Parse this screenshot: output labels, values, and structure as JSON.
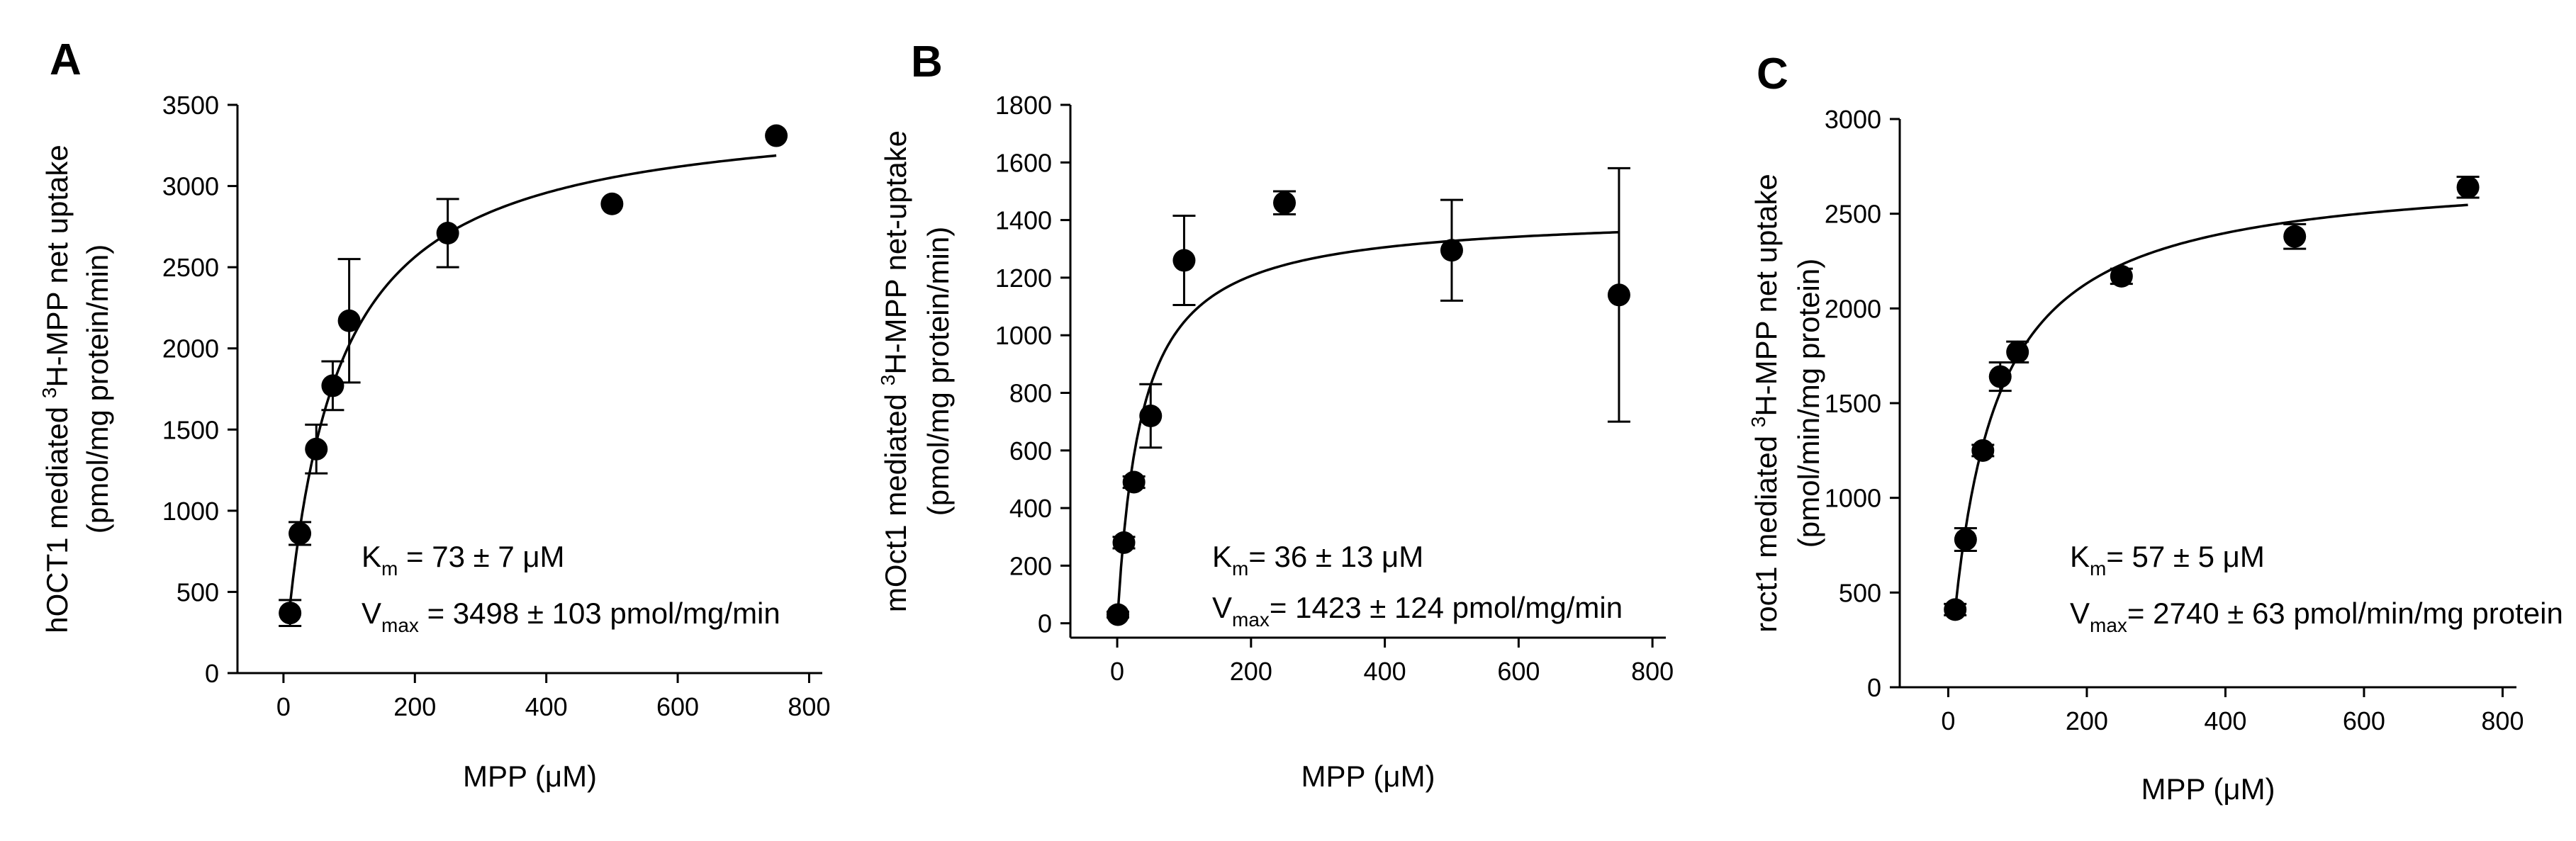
{
  "chart_data": [
    {
      "type": "scatter",
      "panel_label": "A",
      "xlabel": "MPP (μM)",
      "ylabel_line1_pre": "hOCT1 mediated ",
      "ylabel_line1_sup": "3",
      "ylabel_line1_post": "H-MPP net uptake",
      "ylabel_line2": "(pmol/mg protein/min)",
      "xlim": [
        -70,
        820
      ],
      "ylim": [
        0,
        3500
      ],
      "xticks": [
        0,
        200,
        400,
        600,
        800
      ],
      "yticks": [
        0,
        500,
        1000,
        1500,
        2000,
        2500,
        3000,
        3500
      ],
      "x": [
        10,
        25,
        50,
        75,
        100,
        250,
        500,
        750
      ],
      "y": [
        370,
        860,
        1380,
        1770,
        2170,
        2710,
        2890,
        3310
      ],
      "err": [
        80,
        70,
        150,
        150,
        380,
        210,
        0,
        0
      ],
      "fit": {
        "model": "michaelis-menten",
        "km": 73,
        "vmax": 3498,
        "x_range": [
          10,
          750
        ]
      },
      "km_sym": "K",
      "km_sub": "m",
      "km_text": " = 73 ± 7 μM",
      "vmax_sym": "V",
      "vmax_sub": "max",
      "vmax_text": " = 3498 ± 103 pmol/mg/min"
    },
    {
      "type": "scatter",
      "panel_label": "B",
      "xlabel": "MPP (μM)",
      "ylabel_line1_pre": "mOct1 mediated ",
      "ylabel_line1_sup": "3",
      "ylabel_line1_post": "H-MPP net-uptake",
      "ylabel_line2": "(pmol/mg protein/min)",
      "xlim": [
        -70,
        820
      ],
      "ylim": [
        -50,
        1800
      ],
      "xticks": [
        0,
        200,
        400,
        600,
        800
      ],
      "yticks": [
        0,
        200,
        400,
        600,
        800,
        1000,
        1200,
        1400,
        1600,
        1800
      ],
      "x": [
        1,
        10,
        25,
        50,
        100,
        250,
        500,
        750
      ],
      "y": [
        30,
        280,
        490,
        720,
        1260,
        1460,
        1295,
        1140
      ],
      "err": [
        10,
        20,
        20,
        110,
        155,
        40,
        175,
        440
      ],
      "fit": {
        "model": "michaelis-menten",
        "km": 36,
        "vmax": 1423,
        "x_range": [
          1,
          750
        ]
      },
      "km_sym": "K",
      "km_sub": "m",
      "km_text": "= 36 ± 13 μM",
      "vmax_sym": "V",
      "vmax_sub": "max",
      "vmax_text": "= 1423 ± 124 pmol/mg/min"
    },
    {
      "type": "scatter",
      "panel_label": "C",
      "xlabel": "MPP (μM)",
      "ylabel_line1_pre": "roct1 mediated ",
      "ylabel_line1_sup": "3",
      "ylabel_line1_post": "H-MPP net uptake",
      "ylabel_line2": "(pmol/min/mg protein)",
      "xlim": [
        -70,
        820
      ],
      "ylim": [
        0,
        3000
      ],
      "xticks": [
        0,
        200,
        400,
        600,
        800
      ],
      "yticks": [
        0,
        500,
        1000,
        1500,
        2000,
        2500,
        3000
      ],
      "x": [
        10,
        25,
        50,
        75,
        100,
        250,
        500,
        750
      ],
      "y": [
        410,
        780,
        1250,
        1640,
        1770,
        2170,
        2380,
        2640
      ],
      "err": [
        30,
        60,
        30,
        75,
        55,
        40,
        65,
        55
      ],
      "fit": {
        "model": "michaelis-menten",
        "km": 57,
        "vmax": 2740,
        "x_range": [
          10,
          750
        ]
      },
      "km_sym": "K",
      "km_sub": "m",
      "km_text": "= 57 ± 5 μM",
      "vmax_sym": "V",
      "vmax_sub": "max",
      "vmax_text": "= 2740 ± 63 pmol/min/mg protein"
    }
  ]
}
